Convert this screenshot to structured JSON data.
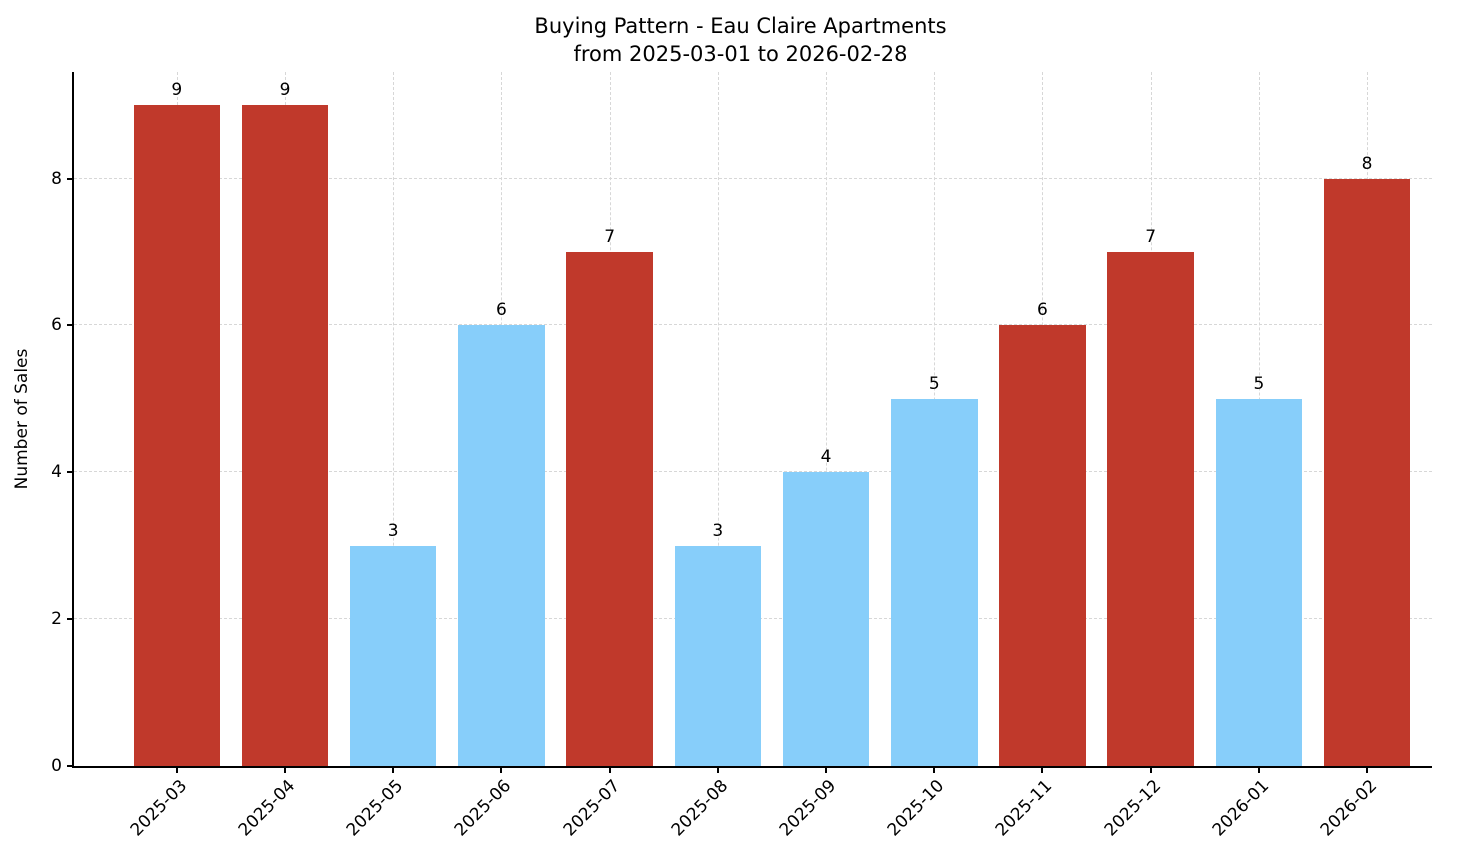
{
  "chart_data": {
    "type": "bar",
    "title": "Buying Pattern - Eau Claire Apartments",
    "subtitle": "from 2025-03-01 to 2026-02-28",
    "xlabel": "",
    "ylabel": "Number of Sales",
    "categories": [
      "2025-03",
      "2025-04",
      "2025-05",
      "2025-06",
      "2025-07",
      "2025-08",
      "2025-09",
      "2025-10",
      "2025-11",
      "2025-12",
      "2026-01",
      "2026-02"
    ],
    "values": [
      9,
      9,
      3,
      6,
      7,
      3,
      4,
      5,
      6,
      7,
      5,
      8
    ],
    "bar_colors": [
      "#c0392b",
      "#c0392b",
      "#87cefa",
      "#87cefa",
      "#c0392b",
      "#87cefa",
      "#87cefa",
      "#87cefa",
      "#c0392b",
      "#c0392b",
      "#87cefa",
      "#c0392b"
    ],
    "palette": {
      "red": "#c0392b",
      "light_blue": "#87cefa"
    },
    "ylim": [
      0,
      9.45
    ],
    "yticks": [
      0,
      2,
      4,
      6,
      8
    ],
    "grid": "dashed",
    "grid_color": "#d7d7d7",
    "legend": "none",
    "bar_width_fraction": 0.8
  }
}
